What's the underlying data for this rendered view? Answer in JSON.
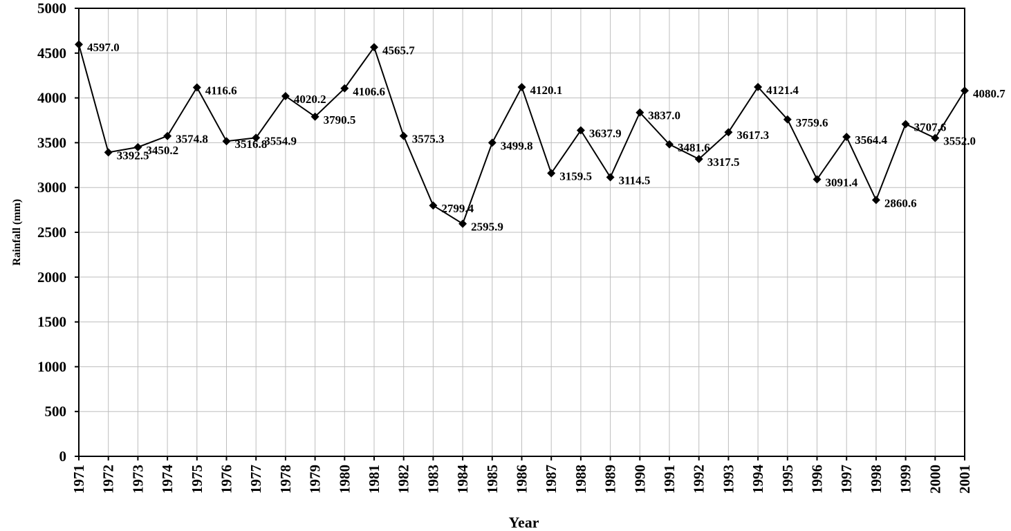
{
  "chart_data": {
    "type": "line",
    "xlabel": "Year",
    "ylabel": "Rainfall (mm)",
    "ylim": [
      0,
      5000
    ],
    "y_ticks": [
      "0",
      "500",
      "1000",
      "1500",
      "2000",
      "2500",
      "3000",
      "3500",
      "4000",
      "4500",
      "5000"
    ],
    "grid": true,
    "marker": "diamond",
    "line_color": "#000000",
    "categories": [
      "1971",
      "1972",
      "1973",
      "1974",
      "1975",
      "1976",
      "1977",
      "1978",
      "1979",
      "1980",
      "1981",
      "1982",
      "1983",
      "1984",
      "1985",
      "1986",
      "1987",
      "1988",
      "1989",
      "1990",
      "1991",
      "1992",
      "1993",
      "1994",
      "1995",
      "1996",
      "1997",
      "1998",
      "1999",
      "2000",
      "2001"
    ],
    "series": [
      {
        "values": [
          4597.0,
          3392.5,
          3450.2,
          3574.8,
          4116.6,
          3516.8,
          3554.9,
          4020.2,
          3790.5,
          4106.6,
          4565.7,
          3575.3,
          2799.4,
          2595.9,
          3499.8,
          4120.1,
          3159.5,
          3637.9,
          3114.5,
          3837.0,
          3481.6,
          3317.5,
          3617.3,
          4121.4,
          3759.6,
          3091.4,
          3564.4,
          2860.6,
          3707.6,
          3552.0,
          4080.7
        ],
        "labels": [
          "4597.0",
          "3392.5",
          "3450.2",
          "3574.8",
          "4116.6",
          "3516.8",
          "3554.9",
          "4020.2",
          "3790.5",
          "4106.6",
          "4565.7",
          "3575.3",
          "2799.4",
          "2595.9",
          "3499.8",
          "4120.1",
          "3159.5",
          "3637.9",
          "3114.5",
          "3837.0",
          "3481.6",
          "3317.5",
          "3617.3",
          "4121.4",
          "3759.6",
          "3091.4",
          "3564.4",
          "2860.6",
          "3707.6",
          "3552.0",
          "4080.7"
        ]
      }
    ]
  }
}
